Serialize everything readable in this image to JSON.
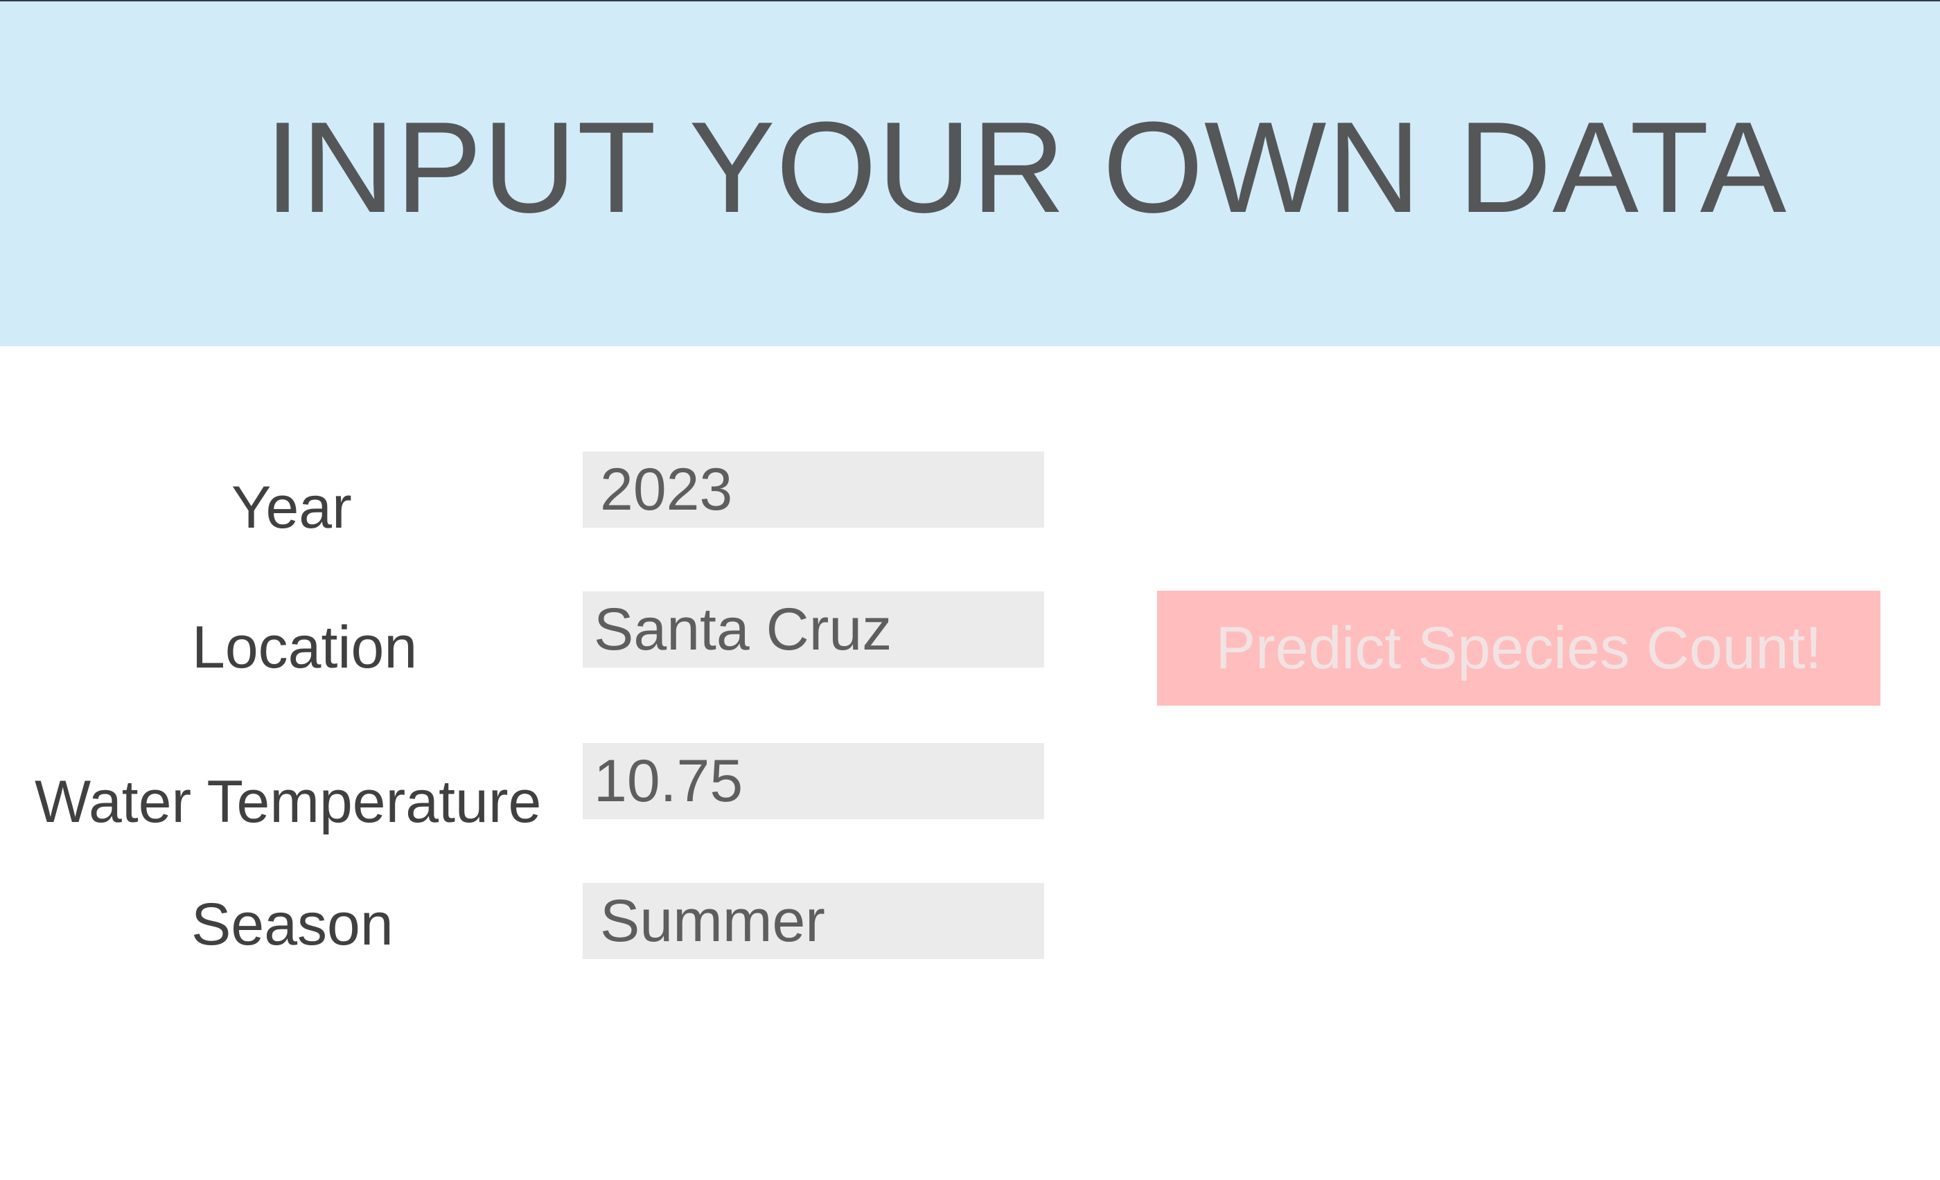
{
  "header": {
    "title": "INPUT YOUR OWN DATA"
  },
  "form": {
    "year": {
      "label": "Year",
      "value": "2023"
    },
    "location": {
      "label": "Location",
      "value": "Santa Cruz"
    },
    "water_temperature": {
      "label": "Water Temperature",
      "value": "10.75"
    },
    "season": {
      "label": "Season",
      "value": "Summer"
    }
  },
  "predict_button": {
    "label": "Predict Species Count!"
  },
  "colors": {
    "header_bg": "#d2ebf9",
    "field_bg": "#ebebeb",
    "button_bg": "#ffbdbd",
    "button_text": "#f1e3e3",
    "title_text": "#555658"
  }
}
